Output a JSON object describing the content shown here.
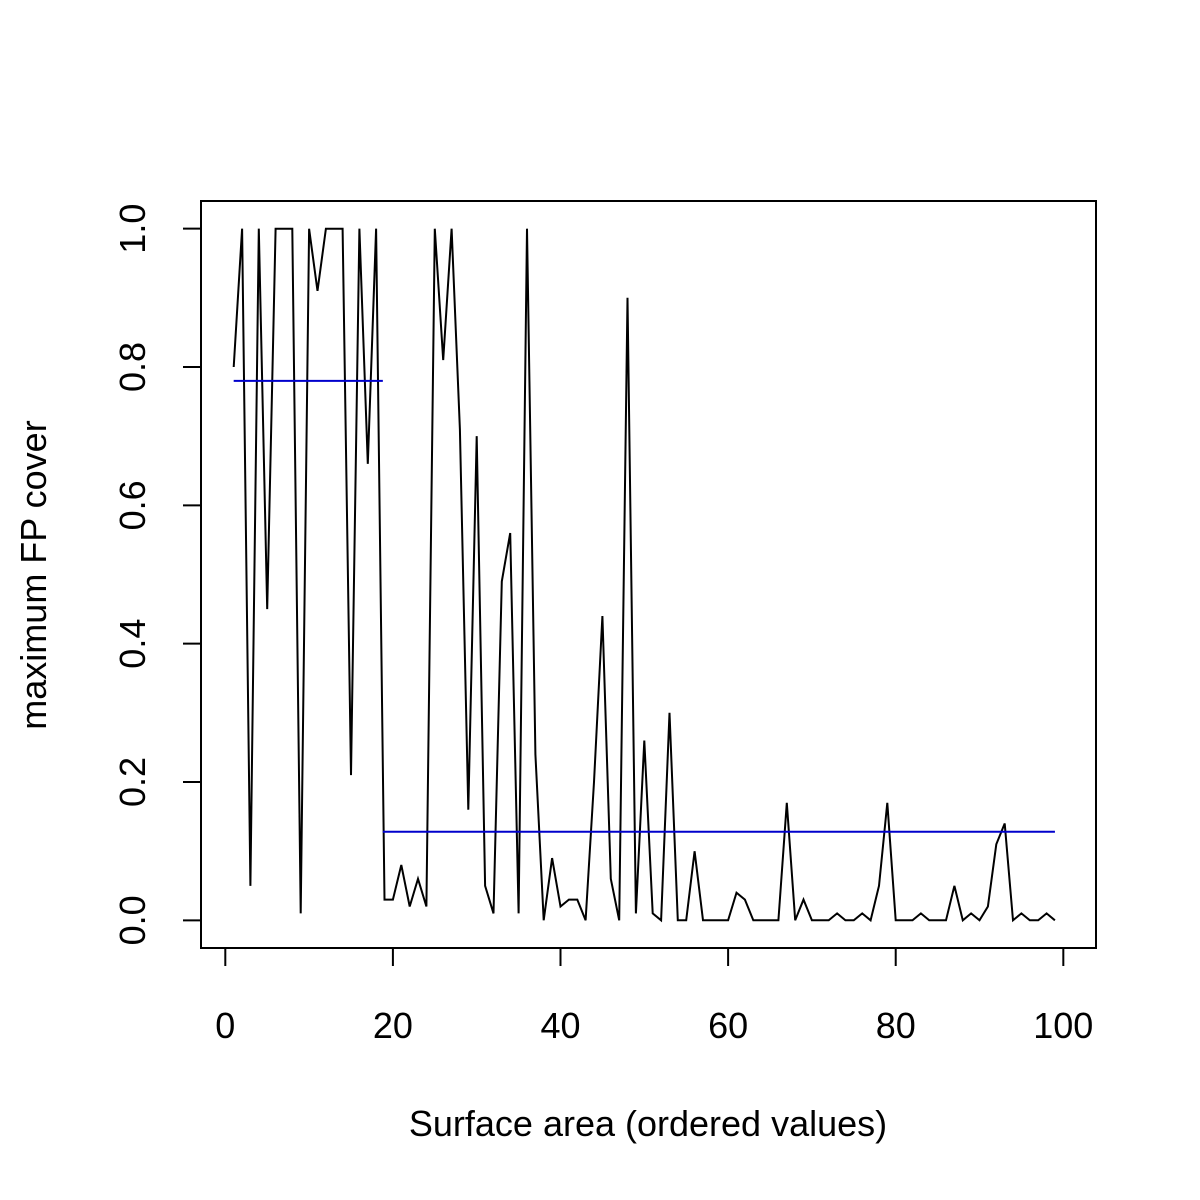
{
  "chart_data": {
    "type": "line",
    "title": "",
    "xlabel": "Surface area (ordered values)",
    "ylabel": "maximum FP cover",
    "xlim": [
      -2.9,
      103.9
    ],
    "ylim": [
      -0.04,
      1.04
    ],
    "x_ticks": [
      0,
      20,
      40,
      60,
      80,
      100
    ],
    "y_ticks": [
      0.0,
      0.2,
      0.4,
      0.6,
      0.8,
      1.0
    ],
    "x_tick_labels": [
      "0",
      "20",
      "40",
      "60",
      "80",
      "100"
    ],
    "y_tick_labels": [
      "0.0",
      "0.2",
      "0.4",
      "0.6",
      "0.8",
      "1.0"
    ],
    "grid": false,
    "legend": "none",
    "series": [
      {
        "color": "#000000",
        "x": [
          1,
          2,
          3,
          4,
          5,
          6,
          7,
          8,
          9,
          10,
          11,
          12,
          13,
          14,
          15,
          16,
          17,
          18,
          19,
          20,
          21,
          22,
          23,
          24,
          25,
          26,
          27,
          28,
          29,
          30,
          31,
          32,
          33,
          34,
          35,
          36,
          37,
          38,
          39,
          40,
          41,
          42,
          43,
          44,
          45,
          46,
          47,
          48,
          49,
          50,
          51,
          52,
          53,
          54,
          55,
          56,
          57,
          58,
          59,
          60,
          61,
          62,
          63,
          64,
          65,
          66,
          67,
          68,
          69,
          70,
          71,
          72,
          73,
          74,
          75,
          76,
          77,
          78,
          79,
          80,
          81,
          82,
          83,
          84,
          85,
          86,
          87,
          88,
          89,
          90,
          91,
          92,
          93,
          94,
          95,
          96,
          97,
          98,
          99
        ],
        "y": [
          0.8,
          1.0,
          0.05,
          1.0,
          0.45,
          1.0,
          1.0,
          1.0,
          0.01,
          1.0,
          0.91,
          1.0,
          1.0,
          1.0,
          0.21,
          1.0,
          0.66,
          1.0,
          0.03,
          0.03,
          0.08,
          0.02,
          0.06,
          0.02,
          1.0,
          0.81,
          1.0,
          0.71,
          0.16,
          0.7,
          0.05,
          0.01,
          0.49,
          0.56,
          0.01,
          1.0,
          0.24,
          0.0,
          0.09,
          0.02,
          0.03,
          0.03,
          0.0,
          0.2,
          0.44,
          0.06,
          0.0,
          0.9,
          0.01,
          0.26,
          0.01,
          0.0,
          0.3,
          0.0,
          0.0,
          0.1,
          0.0,
          0.0,
          0.0,
          0.0,
          0.04,
          0.03,
          0.0,
          0.0,
          0.0,
          0.0,
          0.17,
          0.0,
          0.03,
          0.0,
          0.0,
          0.0,
          0.01,
          0.0,
          0.0,
          0.01,
          0.0,
          0.05,
          0.17,
          0.0,
          0.0,
          0.0,
          0.01,
          0.0,
          0.0,
          0.0,
          0.05,
          0.0,
          0.01,
          0.0,
          0.02,
          0.11,
          0.14,
          0.0,
          0.01,
          0.0,
          0.0,
          0.01,
          0.0
        ]
      },
      {
        "color": "#0000cc",
        "segments": [
          {
            "x": [
              1,
              18.8
            ],
            "y": [
              0.78,
              0.78
            ]
          },
          {
            "x": [
              18.8,
              99
            ],
            "y": [
              0.128,
              0.128
            ]
          }
        ]
      }
    ]
  }
}
